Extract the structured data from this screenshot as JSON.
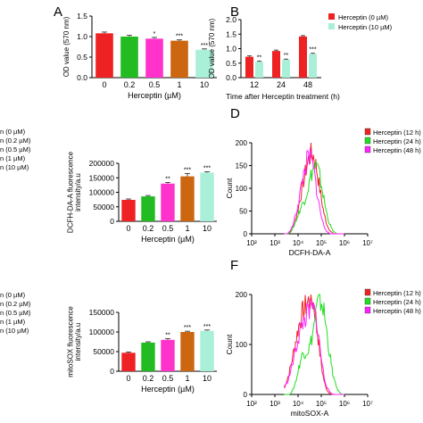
{
  "colors": {
    "bar_palette": [
      "#ee2222",
      "#22bb22",
      "#ff33cc",
      "#cc6611",
      "#aaf0d8"
    ],
    "b_series": [
      "#ee2222",
      "#aaf0d8"
    ],
    "hist_series": [
      "#ee2222",
      "#22dd22",
      "#ff22ff"
    ]
  },
  "panel_labels": {
    "A": "A",
    "B": "B",
    "D": "D",
    "F": "F"
  },
  "left_legends": {
    "c": [
      "n (0 µM)",
      "n (0.2 µM)",
      "n (0.5 µM)",
      "n (1 µM)",
      "n (10 µM)"
    ],
    "e": [
      "n (0 µM)",
      "n (0.2 µM)",
      "n (0.5 µM)",
      "n (1 µM)",
      "n (10 µM)"
    ]
  },
  "chart_data": [
    {
      "id": "A",
      "type": "bar",
      "categories": [
        "0",
        "0.2",
        "0.5",
        "1",
        "10"
      ],
      "values": [
        1.08,
        1.0,
        0.95,
        0.9,
        0.68
      ],
      "errors": [
        0.03,
        0.03,
        0.03,
        0.02,
        0.02
      ],
      "significance": [
        "",
        "",
        "*",
        "***",
        "***"
      ],
      "ylim": [
        0,
        1.5
      ],
      "yticks": [
        "0.0",
        "0.5",
        "1.0",
        "1.5"
      ],
      "xlabel": "Herceptin (µM)",
      "ylabel": "OD value (570 nm)"
    },
    {
      "id": "B",
      "type": "bar",
      "categories": [
        "12",
        "24",
        "48"
      ],
      "series": [
        {
          "name": "Herceptin (0 µM)",
          "values": [
            0.72,
            0.92,
            1.42
          ],
          "errors": [
            0.03,
            0.03,
            0.03
          ]
        },
        {
          "name": "Herceptin (10 µM)",
          "values": [
            0.55,
            0.62,
            0.82
          ],
          "errors": [
            0.02,
            0.02,
            0.02
          ]
        }
      ],
      "significance": [
        "**",
        "**",
        "***"
      ],
      "ylim": [
        0,
        2.0
      ],
      "yticks": [
        "0.0",
        "0.5",
        "1.0",
        "1.5",
        "2.0"
      ],
      "xlabel": "Time after Herceptin treatment (h)",
      "ylabel": "OD value (570 nm)"
    },
    {
      "id": "C",
      "type": "bar",
      "categories": [
        "0",
        "0.2",
        "0.5",
        "1",
        "10"
      ],
      "values": [
        74000,
        86000,
        130000,
        155000,
        168000
      ],
      "errors": [
        3000,
        3000,
        4000,
        10000,
        3000
      ],
      "significance": [
        "",
        "",
        "**",
        "***",
        "***"
      ],
      "ylim": [
        0,
        200000
      ],
      "yticks": [
        "0",
        "50000",
        "100000",
        "150000",
        "200000"
      ],
      "xlabel": "Herceptin (µM)",
      "ylabel": "DCFH-DA-A fluorescence intensity/a.u"
    },
    {
      "id": "D",
      "type": "area",
      "series": [
        {
          "name": "Herceptin (12 h)",
          "peak_x": 4.6,
          "width": 0.32,
          "height": 175,
          "hump_x": 4.1,
          "hump_h": 30
        },
        {
          "name": "Herceptin (24 h)",
          "peak_x": 4.75,
          "width": 0.32,
          "height": 150,
          "hump_x": 4.1,
          "hump_h": 38
        },
        {
          "name": "Herceptin (48 h)",
          "peak_x": 4.5,
          "width": 0.3,
          "height": 165,
          "hump_x": 4.05,
          "hump_h": 28
        }
      ],
      "xlim": [
        2,
        7
      ],
      "ylim": [
        0,
        200
      ],
      "xticks": [
        "10²",
        "10³",
        "10⁴",
        "10⁵",
        "10⁶",
        "10⁷"
      ],
      "yticks": [
        "0",
        "50",
        "100",
        "150",
        "200"
      ],
      "xlabel": "DCFH-DA-A",
      "ylabel": "Count"
    },
    {
      "id": "E",
      "type": "bar",
      "categories": [
        "0",
        "0.2",
        "0.5",
        "1",
        "10"
      ],
      "values": [
        47000,
        73000,
        80000,
        100000,
        103000
      ],
      "errors": [
        2000,
        2000,
        3000,
        2000,
        2000
      ],
      "significance": [
        "",
        "",
        "**",
        "***",
        "***"
      ],
      "ylim": [
        0,
        150000
      ],
      "yticks": [
        "0",
        "50000",
        "100000",
        "150000"
      ],
      "xlabel": "Herceptin (µM)",
      "ylabel": "mitoSOX fluorescence intensity/a.u"
    },
    {
      "id": "F",
      "type": "area",
      "series": [
        {
          "name": "Herceptin (12 h)",
          "peak_x": 4.25,
          "width": 0.4,
          "height": 160,
          "hump_x": 4.7,
          "hump_h": 90
        },
        {
          "name": "Herceptin (24 h)",
          "peak_x": 4.95,
          "width": 0.32,
          "height": 190,
          "hump_x": 4.2,
          "hump_h": 70
        },
        {
          "name": "Herceptin (48 h)",
          "peak_x": 4.3,
          "width": 0.42,
          "height": 145,
          "hump_x": 4.75,
          "hump_h": 75
        }
      ],
      "xlim": [
        2,
        7
      ],
      "ylim": [
        0,
        200
      ],
      "xticks": [
        "10²",
        "10³",
        "10⁴",
        "10⁵",
        "10⁶",
        "10⁷"
      ],
      "yticks": [
        "0",
        "100",
        "200"
      ],
      "xlabel": "mitoSOX-A",
      "ylabel": "Count"
    }
  ]
}
